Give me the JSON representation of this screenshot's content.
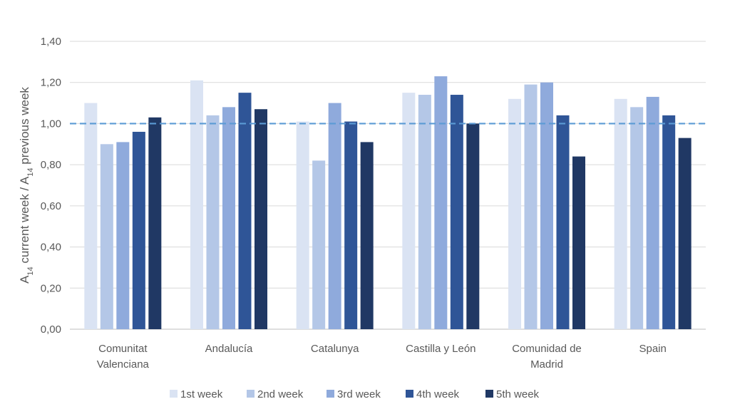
{
  "chart_data": {
    "type": "bar",
    "title": "",
    "ylabel": {
      "parts": [
        {
          "text": "A",
          "sub": false
        },
        {
          "text": "14",
          "sub": true
        },
        {
          "text": " current week / A",
          "sub": false
        },
        {
          "text": "14",
          "sub": true
        },
        {
          "text": " previous week",
          "sub": false
        }
      ]
    },
    "xlabel": "",
    "categories": [
      [
        "Comunitat",
        "Valenciana"
      ],
      [
        "Andalucía"
      ],
      [
        "Catalunya"
      ],
      [
        "Castilla y León"
      ],
      [
        "Comunidad de",
        "Madrid"
      ],
      [
        "Spain"
      ]
    ],
    "series": [
      {
        "name": "1st week",
        "color": "#dae3f3",
        "values": [
          1.1,
          1.21,
          1.01,
          1.15,
          1.12,
          1.12
        ]
      },
      {
        "name": "2nd week",
        "color": "#b4c7e7",
        "values": [
          0.9,
          1.04,
          0.82,
          1.14,
          1.19,
          1.08
        ]
      },
      {
        "name": "3rd week",
        "color": "#8faadc",
        "values": [
          0.91,
          1.08,
          1.1,
          1.23,
          1.2,
          1.13
        ]
      },
      {
        "name": "4th week",
        "color": "#2f5597",
        "values": [
          0.96,
          1.15,
          1.01,
          1.14,
          1.04,
          1.04
        ]
      },
      {
        "name": "5th week",
        "color": "#203864",
        "values": [
          1.03,
          1.07,
          0.91,
          1.0,
          0.84,
          0.93
        ]
      }
    ],
    "ylim": [
      0,
      1.4
    ],
    "yticks": [
      "0,00",
      "0,20",
      "0,40",
      "0,60",
      "0,80",
      "1,00",
      "1,20",
      "1,40"
    ],
    "reference_line": {
      "y": 1.0,
      "style": "dashed",
      "color": "#5b9bd5"
    },
    "grid": true,
    "legend_position": "bottom"
  }
}
